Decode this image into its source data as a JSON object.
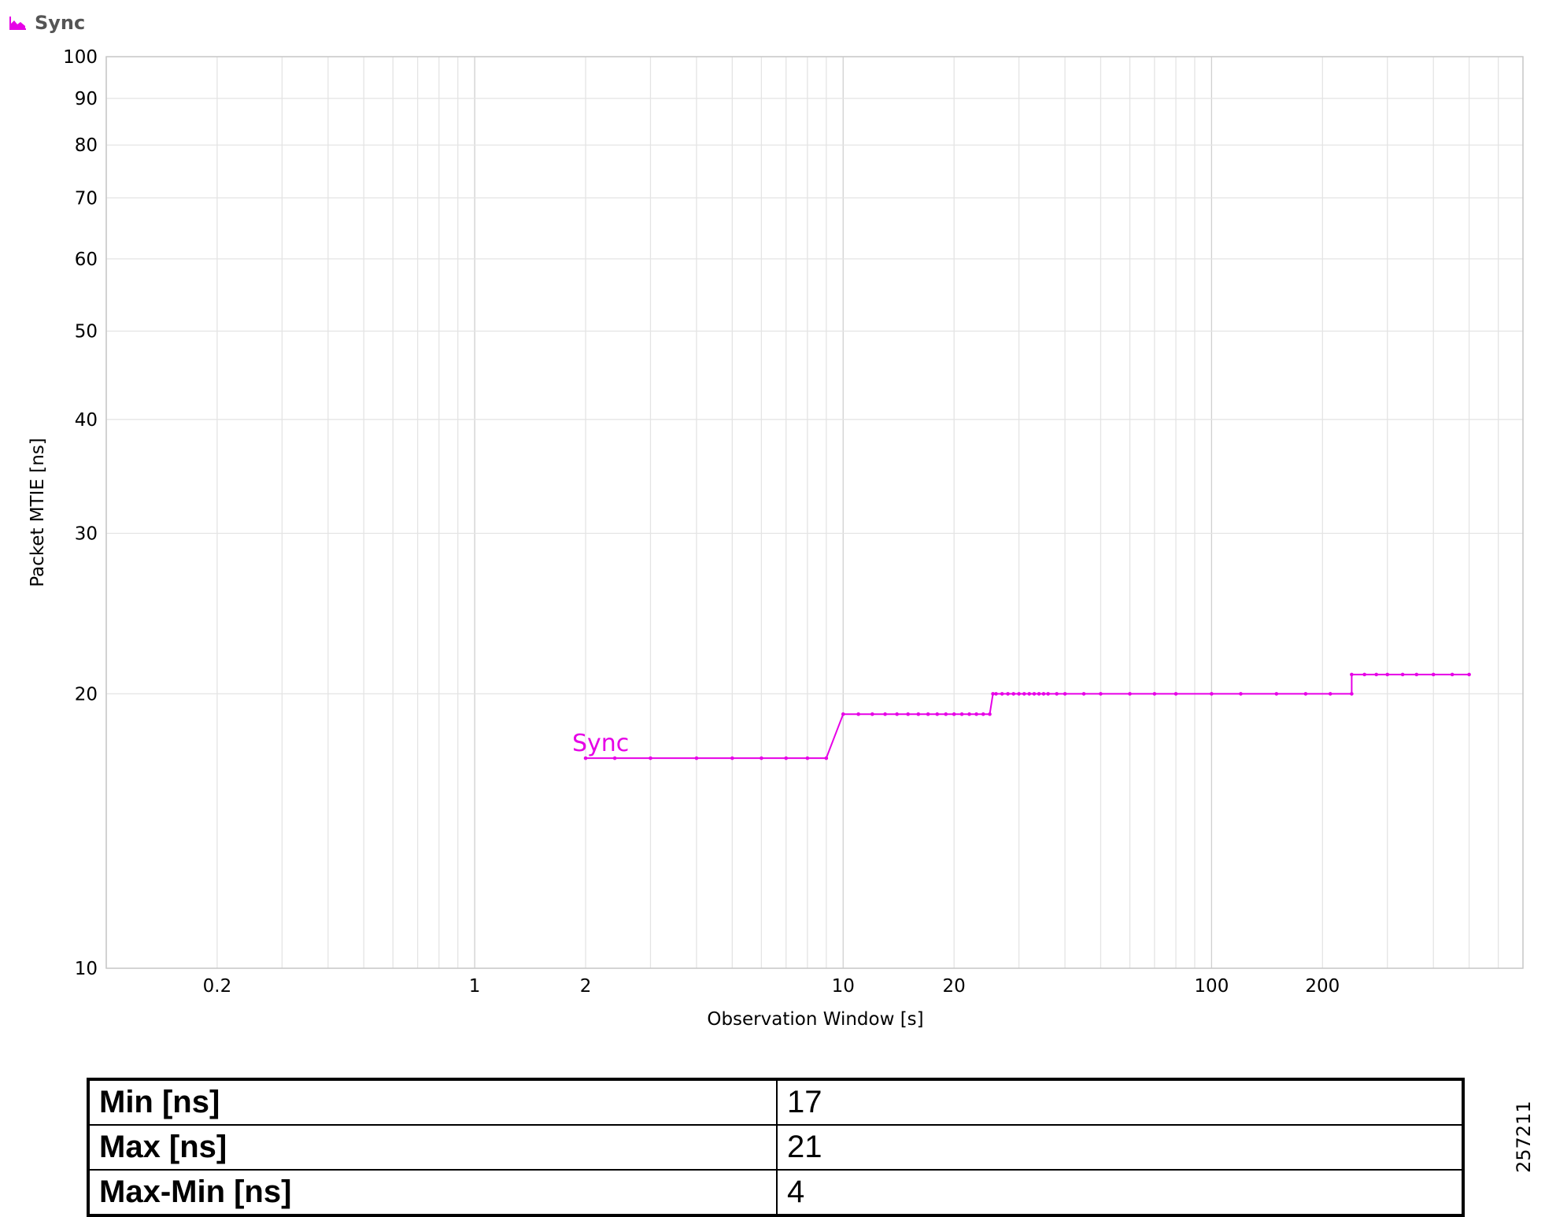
{
  "header": {
    "icon": "area-chart-icon",
    "title": "Sync"
  },
  "chart_data": {
    "type": "line",
    "title": "",
    "xlabel": "Observation Window [s]",
    "ylabel": "Packet MTIE [ns]",
    "x_scale": "log",
    "y_scale": "log",
    "xlim": [
      0.1,
      700
    ],
    "ylim": [
      10,
      100
    ],
    "x_tick_labels": [
      "0.2",
      "1",
      "2",
      "10",
      "20",
      "100",
      "200"
    ],
    "y_tick_labels": [
      "10",
      "20",
      "30",
      "40",
      "50",
      "60",
      "70",
      "80",
      "90",
      "100"
    ],
    "grid": true,
    "legend": "none",
    "series": [
      {
        "name": "Sync",
        "color": "#e600e6",
        "steps": [
          {
            "x_from": 2,
            "x_to": 9,
            "y": 17,
            "markers": [
              2,
              2.4,
              3,
              4,
              5,
              6,
              7,
              8,
              9
            ]
          },
          {
            "x_from": 10,
            "x_to": 25,
            "y": 19,
            "markers": [
              10,
              11,
              12,
              13,
              14,
              15,
              16,
              17,
              18,
              19,
              20,
              21,
              22,
              23,
              24,
              25
            ]
          },
          {
            "x_from": 25.5,
            "x_to": 240,
            "y": 20,
            "markers": [
              25.5,
              26,
              27,
              28,
              29,
              30,
              31,
              32,
              33,
              34,
              35,
              36,
              38,
              40,
              45,
              50,
              60,
              70,
              80,
              100,
              120,
              150,
              180,
              210,
              240
            ]
          },
          {
            "x_from": 240,
            "x_to": 500,
            "y": 21,
            "markers": [
              240,
              260,
              280,
              300,
              330,
              360,
              400,
              450,
              500
            ]
          }
        ]
      }
    ]
  },
  "stats": {
    "rows": [
      {
        "label": "Min [ns]",
        "value": "17"
      },
      {
        "label": "Max [ns]",
        "value": "21"
      },
      {
        "label": "Max-Min [ns]",
        "value": "4"
      }
    ]
  },
  "figure_id": "257211"
}
